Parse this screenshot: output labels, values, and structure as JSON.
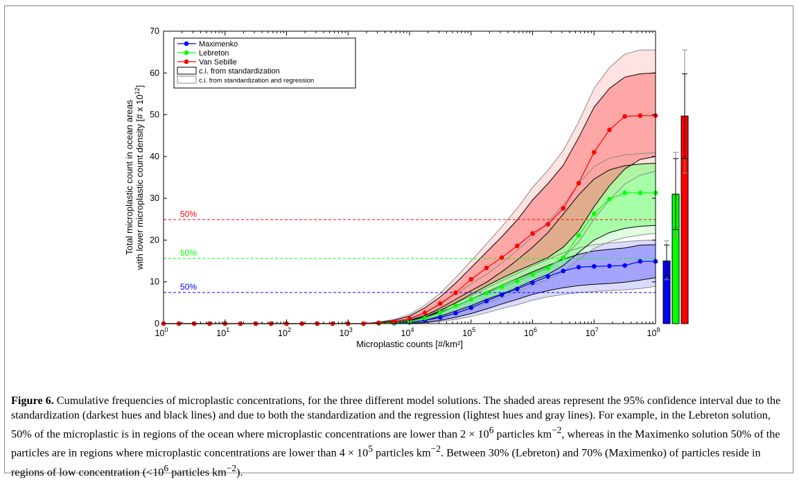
{
  "chart_data": {
    "type": "line",
    "x_scale": "log",
    "x": [
      1,
      1.78,
      3.16,
      5.62,
      10,
      17.8,
      31.6,
      56.2,
      100,
      178,
      316,
      562,
      1000,
      1780,
      3160,
      5620,
      10000,
      17800,
      31600,
      56200,
      100000,
      178000,
      316000,
      562000,
      1000000,
      1780000,
      3160000,
      5620000,
      10000000,
      17800000,
      31600000,
      56200000,
      100000000
    ],
    "xlabel": "Microplastic counts [#/km²]",
    "ylabel_line1": "Total microplastic count in ocean areas",
    "ylabel_line2": "with lower microplastic count density [# x 10",
    "ylabel_sup": "12",
    "ylabel_end": "]",
    "xlim": [
      1,
      100000000
    ],
    "ylim": [
      0,
      70
    ],
    "yticks": [
      0,
      10,
      20,
      30,
      40,
      50,
      60,
      70
    ],
    "xticks": [
      {
        "base": "10",
        "exp": "0"
      },
      {
        "base": "10",
        "exp": "1"
      },
      {
        "base": "10",
        "exp": "2"
      },
      {
        "base": "10",
        "exp": "3"
      },
      {
        "base": "10",
        "exp": "4"
      },
      {
        "base": "10",
        "exp": "5"
      },
      {
        "base": "10",
        "exp": "6"
      },
      {
        "base": "10",
        "exp": "7"
      },
      {
        "base": "10",
        "exp": "8"
      }
    ],
    "series": [
      {
        "name": "Maximenko",
        "color": "#0000ff",
        "fill": "#7f7fff",
        "fill_light": "#cfcfff",
        "values": [
          0,
          0,
          0,
          0,
          0,
          0,
          0,
          0,
          0,
          0,
          0,
          0,
          0,
          0,
          0.05,
          0.1,
          0.3,
          0.8,
          1.5,
          2.5,
          3.8,
          5.4,
          6.9,
          8.3,
          9.8,
          11.3,
          12.6,
          13.5,
          13.7,
          13.8,
          13.9,
          14.9,
          14.9
        ],
        "ci_std": {
          "low": [
            0,
            0,
            0,
            0,
            0,
            0,
            0,
            0,
            0,
            0,
            0,
            0,
            0,
            0,
            0,
            0,
            0.1,
            0.3,
            0.8,
            1.5,
            2.4,
            3.5,
            4.7,
            5.8,
            7.0,
            7.9,
            8.6,
            9.1,
            9.4,
            9.6,
            9.9,
            10.4,
            11.0
          ],
          "high": [
            0,
            0,
            0,
            0,
            0,
            0,
            0,
            0,
            0,
            0,
            0,
            0,
            0,
            0,
            0.1,
            0.3,
            0.7,
            1.6,
            2.8,
            4.2,
            5.8,
            7.5,
            9.2,
            10.8,
            12.4,
            13.9,
            15.4,
            16.6,
            17.4,
            17.8,
            18.1,
            18.8,
            18.9
          ]
        },
        "ci_reg": {
          "low": [
            0,
            0,
            0,
            0,
            0,
            0,
            0,
            0,
            0,
            0,
            0,
            0,
            0,
            0,
            0,
            0,
            0.05,
            0.2,
            0.5,
            1.0,
            1.7,
            2.6,
            3.6,
            4.5,
            5.6,
            6.4,
            7.0,
            7.4,
            7.7,
            7.9,
            8.1,
            8.4,
            8.9
          ],
          "high": [
            0,
            0,
            0,
            0,
            0,
            0,
            0,
            0,
            0,
            0,
            0,
            0,
            0,
            0,
            0.2,
            0.5,
            1.0,
            2.0,
            3.3,
            4.9,
            6.6,
            8.5,
            10.3,
            12.0,
            13.8,
            15.4,
            16.9,
            18.1,
            18.9,
            19.3,
            19.6,
            19.9,
            20.0
          ]
        },
        "bar": {
          "value": 15.0,
          "err_std": [
            11.3,
            18.8
          ],
          "err_reg": [
            10.5,
            19.8
          ]
        }
      },
      {
        "name": "Lebreton",
        "color": "#00ff00",
        "fill": "#7fff7f",
        "fill_light": "#d5ffd5",
        "values": [
          0,
          0,
          0,
          0,
          0,
          0,
          0,
          0,
          0,
          0,
          0,
          0,
          0,
          0,
          0.05,
          0.2,
          0.5,
          1.3,
          2.6,
          4.3,
          5.8,
          7.3,
          8.8,
          10.2,
          11.8,
          13.3,
          15.8,
          21.1,
          26.3,
          29.8,
          31.3,
          31.3,
          31.3
        ],
        "ci_std": {
          "low": [
            0,
            0,
            0,
            0,
            0,
            0,
            0,
            0,
            0,
            0,
            0,
            0,
            0,
            0,
            0,
            0.1,
            0.3,
            0.8,
            1.8,
            3.0,
            4.3,
            5.8,
            7.1,
            8.6,
            10.3,
            11.8,
            13.9,
            17.0,
            20.0,
            21.8,
            22.8,
            23.3,
            23.5
          ],
          "high": [
            0,
            0,
            0,
            0,
            0,
            0,
            0,
            0,
            0,
            0,
            0,
            0,
            0,
            0,
            0.1,
            0.3,
            0.8,
            1.9,
            3.7,
            5.8,
            7.9,
            9.9,
            12.4,
            15.2,
            18.3,
            21.8,
            26.2,
            30.8,
            34.6,
            36.8,
            37.8,
            38.2,
            38.4
          ]
        },
        "ci_reg": {
          "low": [
            0,
            0,
            0,
            0,
            0,
            0,
            0,
            0,
            0,
            0,
            0,
            0,
            0,
            0,
            0,
            0.05,
            0.2,
            0.6,
            1.4,
            2.4,
            3.6,
            4.9,
            6.2,
            7.6,
            9.1,
            10.6,
            12.4,
            15.4,
            18.0,
            19.6,
            20.6,
            21.2,
            21.6
          ],
          "high": [
            0,
            0,
            0,
            0,
            0,
            0,
            0,
            0,
            0,
            0,
            0,
            0,
            0,
            0,
            0.2,
            0.5,
            1.1,
            2.5,
            4.6,
            7.0,
            9.5,
            11.8,
            14.5,
            17.5,
            20.8,
            24.3,
            28.5,
            33.4,
            37.6,
            39.6,
            40.4,
            40.7,
            40.9
          ]
        },
        "bar": {
          "value": 31.0,
          "err_std": [
            22.5,
            39.5
          ],
          "err_reg": [
            21.0,
            41.0
          ]
        }
      },
      {
        "name": "Van Sebille",
        "color": "#ff0000",
        "fill": "#ff7f7f",
        "fill_light": "#ffd8d8",
        "values": [
          0,
          0,
          0,
          0,
          0,
          0,
          0,
          0,
          0,
          0,
          0,
          0,
          0,
          0,
          0.2,
          0.5,
          1.2,
          2.6,
          4.8,
          7.4,
          10.6,
          13.3,
          15.8,
          18.6,
          21.6,
          23.8,
          27.6,
          33.6,
          41.0,
          46.4,
          49.6,
          49.8,
          49.8
        ],
        "ci_std": {
          "low": [
            0,
            0,
            0,
            0,
            0,
            0,
            0,
            0,
            0,
            0,
            0,
            0,
            0,
            0,
            0.1,
            0.3,
            0.7,
            1.6,
            3.1,
            5.0,
            7.0,
            9.0,
            10.9,
            12.6,
            14.2,
            15.8,
            18.3,
            22.2,
            28.0,
            33.0,
            37.0,
            39.3,
            40.0
          ],
          "high": [
            0,
            0,
            0,
            0,
            0,
            0,
            0,
            0,
            0,
            0,
            0,
            0,
            0,
            0,
            0.3,
            0.8,
            1.8,
            3.8,
            6.4,
            9.7,
            13.4,
            17.1,
            20.8,
            24.8,
            29.6,
            33.5,
            37.9,
            44.5,
            51.8,
            56.3,
            59.0,
            59.8,
            60.0
          ]
        },
        "ci_reg": {
          "low": [
            0,
            0,
            0,
            0,
            0,
            0,
            0,
            0,
            0,
            0,
            0,
            0,
            0,
            0,
            0.05,
            0.2,
            0.5,
            1.2,
            2.5,
            4.2,
            5.9,
            7.6,
            9.2,
            10.7,
            12.2,
            13.6,
            15.8,
            19.5,
            25.0,
            29.6,
            33.4,
            35.5,
            36.5
          ],
          "high": [
            0,
            0,
            0,
            0,
            0,
            0,
            0,
            0,
            0,
            0,
            0,
            0,
            0,
            0,
            0.4,
            1.0,
            2.2,
            4.4,
            7.3,
            11.0,
            15.0,
            19.1,
            23.2,
            27.6,
            32.6,
            36.7,
            41.4,
            48.3,
            56.3,
            61.3,
            64.5,
            65.5,
            65.5
          ]
        },
        "bar": {
          "value": 49.7,
          "err_std": [
            39.5,
            59.8
          ],
          "err_reg": [
            36.0,
            65.5
          ]
        }
      }
    ],
    "annotations": [
      {
        "text": "50%",
        "y": 7.45,
        "color": "#0000ff"
      },
      {
        "text": "50%",
        "y": 15.6,
        "color": "#00ff00"
      },
      {
        "text": "50%",
        "y": 24.9,
        "color": "#ff0000"
      }
    ],
    "legend": {
      "position": "top-left",
      "entries": [
        "Maximenko",
        "Lebreton",
        "Van Sebille",
        "c.i. from standardization",
        "c.i. from standardization and regression"
      ]
    }
  },
  "caption": {
    "label": "Figure 6.",
    "text": " Cumulative frequencies of microplastic concentrations, for the three different model solutions. The shaded areas represent the 95% confidence interval due to the standardization (darkest hues and black lines) and due to both the standardization and the regression (lightest hues and gray lines). For example, in the Lebreton solution, 50% of the microplastic is in regions of the ocean where microplastic concentrations are lower than 2 × 10",
    "sup1": "6",
    "text2": " particles km",
    "sup2": "−2",
    "text3": ", whereas in the Maximenko solution 50% of the particles are in regions where microplastic concentrations are lower than 4 × 10",
    "sup3": "5",
    "text4": " particles km",
    "sup4": "−2",
    "text5": ". Between 30% (Lebreton) and 70% (Maximenko) of particles reside in regions of low concentration (<10",
    "sup5": "6",
    "text6": " particles km",
    "sup6": "−2",
    "text7": ")."
  }
}
